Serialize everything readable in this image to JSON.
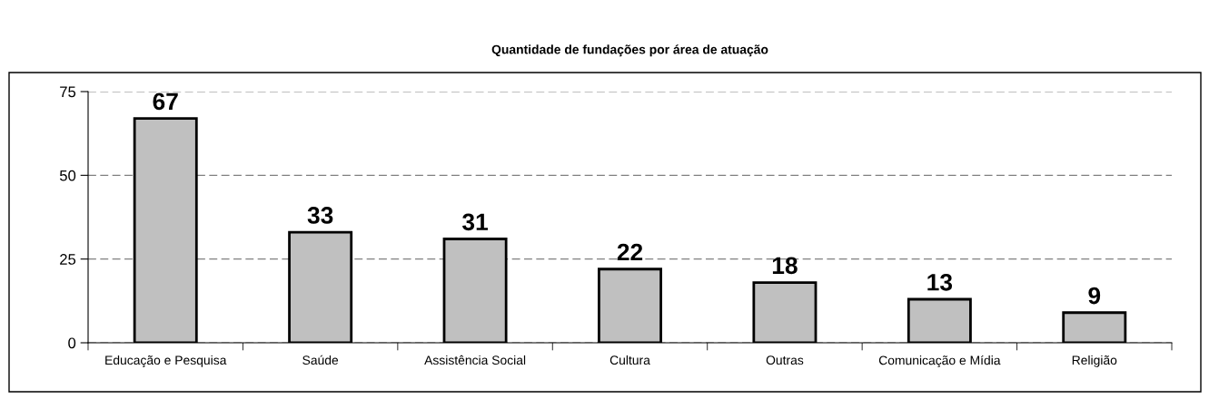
{
  "chart_data": {
    "type": "bar",
    "title": "Quantidade de fundações por área de atuação",
    "categories": [
      "Educação e Pesquisa",
      "Saúde",
      "Assistência Social",
      "Cultura",
      "Outras",
      "Comunicação e Mídia",
      "Religião"
    ],
    "values": [
      67,
      33,
      31,
      22,
      18,
      13,
      9
    ],
    "color": "#c0c0c0",
    "ylim": [
      0,
      75
    ],
    "yticks": [
      0,
      25,
      50,
      75
    ],
    "grid": "y",
    "data_labels": true
  }
}
